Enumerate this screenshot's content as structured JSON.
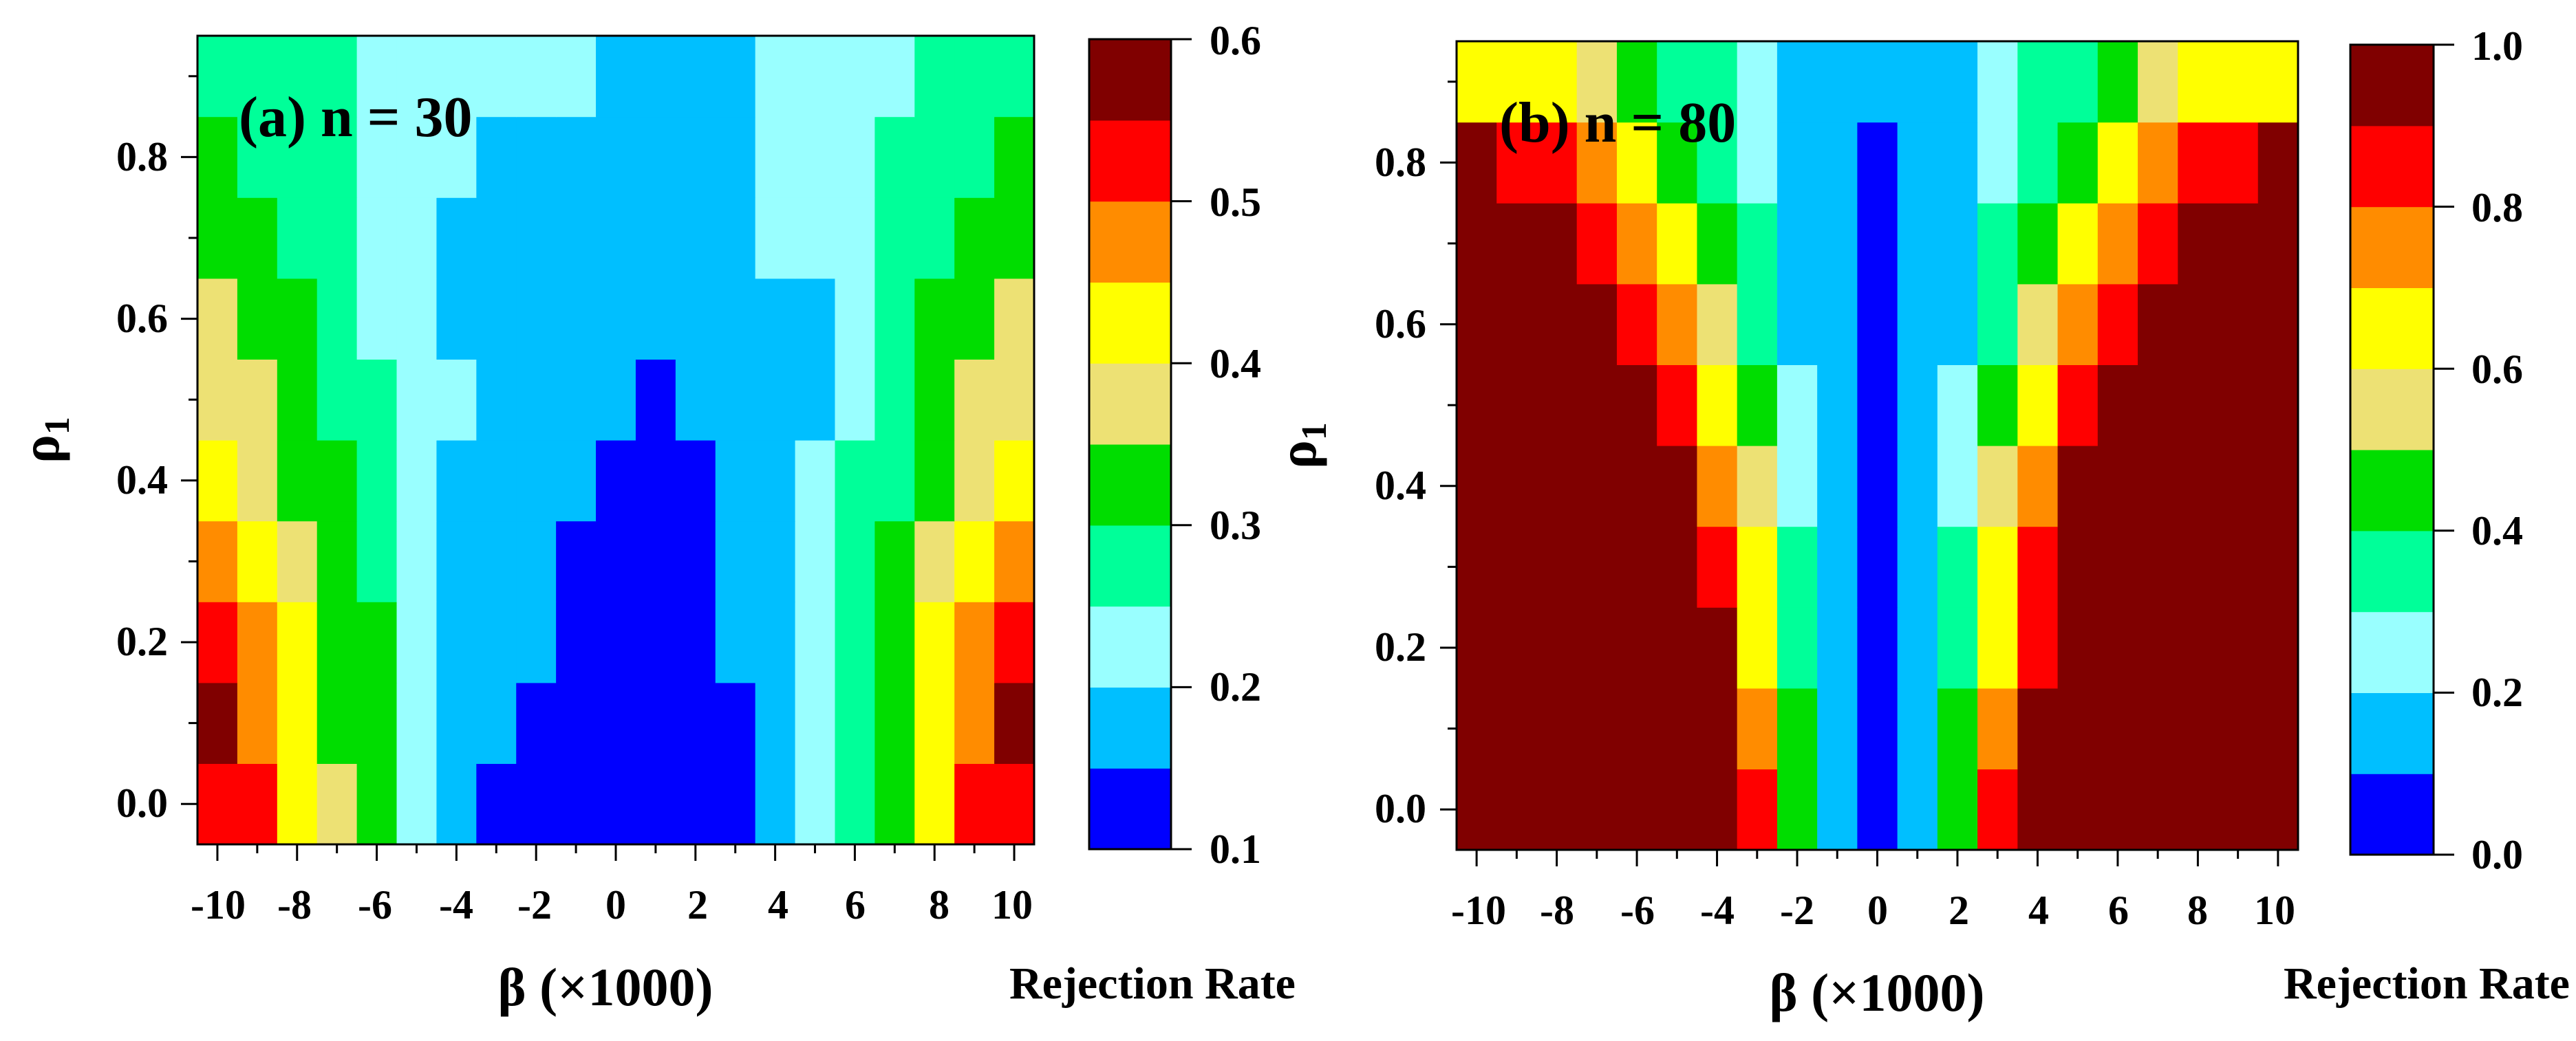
{
  "palette": [
    "#0000FF",
    "#00BFFF",
    "#99FFFF",
    "#00FF99",
    "#00DD00",
    "#EDE174",
    "#FFFF00",
    "#FF8C00",
    "#FF0000",
    "#800000"
  ],
  "chart_data": [
    {
      "type": "heatmap",
      "title": "(a) n = 30",
      "xlabel": "β (×1000)",
      "ylabel": "ρ",
      "ylabel_subscript": "1",
      "colorbar_label": "Rejection Rate",
      "x": [
        -10,
        -9,
        -8,
        -7,
        -6,
        -5,
        -4,
        -3,
        -2,
        -1,
        0,
        1,
        2,
        3,
        4,
        5,
        6,
        7,
        8,
        9,
        10
      ],
      "y": [
        0.0,
        0.1,
        0.2,
        0.3,
        0.4,
        0.5,
        0.6,
        0.7,
        0.8,
        0.9
      ],
      "x_ticks": [
        -10,
        -8,
        -6,
        -4,
        -2,
        0,
        2,
        4,
        6,
        8,
        10
      ],
      "x_tick_labels": [
        "-10",
        "-8",
        "-6",
        "-4",
        "-2",
        "0",
        "2",
        "4",
        "6",
        "8",
        "10"
      ],
      "y_ticks": [
        0.0,
        0.2,
        0.4,
        0.6,
        0.8
      ],
      "y_tick_labels": [
        "0.0",
        "0.2",
        "0.4",
        "0.6",
        "0.8"
      ],
      "color_levels": [
        0.1,
        0.15,
        0.2,
        0.25,
        0.3,
        0.35,
        0.4,
        0.45,
        0.5,
        0.55,
        0.6
      ],
      "colorbar_ticks": [
        0.1,
        0.2,
        0.3,
        0.4,
        0.5,
        0.6
      ],
      "colorbar_tick_labels": [
        "0.1",
        "0.2",
        "0.3",
        "0.4",
        "0.5",
        "0.6"
      ],
      "values": [
        [
          0.525,
          0.525,
          0.425,
          0.375,
          0.325,
          0.225,
          0.175,
          0.125,
          0.125,
          0.125,
          0.125,
          0.125,
          0.125,
          0.125,
          0.175,
          0.225,
          0.275,
          0.325,
          0.425,
          0.525,
          0.525
        ],
        [
          0.575,
          0.475,
          0.425,
          0.325,
          0.325,
          0.225,
          0.175,
          0.175,
          0.125,
          0.125,
          0.125,
          0.125,
          0.125,
          0.125,
          0.175,
          0.225,
          0.275,
          0.325,
          0.425,
          0.475,
          0.575
        ],
        [
          0.525,
          0.475,
          0.425,
          0.325,
          0.325,
          0.225,
          0.175,
          0.175,
          0.175,
          0.125,
          0.125,
          0.125,
          0.125,
          0.175,
          0.175,
          0.225,
          0.275,
          0.325,
          0.425,
          0.475,
          0.525
        ],
        [
          0.475,
          0.425,
          0.375,
          0.325,
          0.275,
          0.225,
          0.175,
          0.175,
          0.175,
          0.125,
          0.125,
          0.125,
          0.125,
          0.175,
          0.175,
          0.225,
          0.275,
          0.325,
          0.375,
          0.425,
          0.475
        ],
        [
          0.425,
          0.375,
          0.325,
          0.325,
          0.275,
          0.225,
          0.175,
          0.175,
          0.175,
          0.175,
          0.125,
          0.125,
          0.125,
          0.175,
          0.175,
          0.225,
          0.275,
          0.275,
          0.325,
          0.375,
          0.425
        ],
        [
          0.375,
          0.375,
          0.325,
          0.275,
          0.275,
          0.225,
          0.225,
          0.175,
          0.175,
          0.175,
          0.175,
          0.125,
          0.175,
          0.175,
          0.175,
          0.175,
          0.225,
          0.275,
          0.325,
          0.375,
          0.375
        ],
        [
          0.375,
          0.325,
          0.325,
          0.275,
          0.225,
          0.225,
          0.175,
          0.175,
          0.175,
          0.175,
          0.175,
          0.175,
          0.175,
          0.175,
          0.175,
          0.175,
          0.225,
          0.275,
          0.325,
          0.325,
          0.375
        ],
        [
          0.325,
          0.325,
          0.275,
          0.275,
          0.225,
          0.225,
          0.175,
          0.175,
          0.175,
          0.175,
          0.175,
          0.175,
          0.175,
          0.175,
          0.225,
          0.225,
          0.225,
          0.275,
          0.275,
          0.325,
          0.325
        ],
        [
          0.325,
          0.275,
          0.275,
          0.275,
          0.225,
          0.225,
          0.225,
          0.175,
          0.175,
          0.175,
          0.175,
          0.175,
          0.175,
          0.175,
          0.225,
          0.225,
          0.225,
          0.275,
          0.275,
          0.275,
          0.325
        ],
        [
          0.275,
          0.275,
          0.275,
          0.275,
          0.225,
          0.225,
          0.225,
          0.225,
          0.225,
          0.225,
          0.175,
          0.175,
          0.175,
          0.175,
          0.225,
          0.225,
          0.225,
          0.225,
          0.275,
          0.275,
          0.275
        ]
      ]
    },
    {
      "type": "heatmap",
      "title": "(b) n = 80",
      "xlabel": "β (×1000)",
      "ylabel": "ρ",
      "ylabel_subscript": "1",
      "colorbar_label": "Rejection Rate",
      "x": [
        -10,
        -9,
        -8,
        -7,
        -6,
        -5,
        -4,
        -3,
        -2,
        -1,
        0,
        1,
        2,
        3,
        4,
        5,
        6,
        7,
        8,
        9,
        10
      ],
      "y": [
        0.0,
        0.1,
        0.2,
        0.3,
        0.4,
        0.5,
        0.6,
        0.7,
        0.8,
        0.9
      ],
      "x_ticks": [
        -10,
        -8,
        -6,
        -4,
        -2,
        0,
        2,
        4,
        6,
        8,
        10
      ],
      "x_tick_labels": [
        "-10",
        "-8",
        "-6",
        "-4",
        "-2",
        "0",
        "2",
        "4",
        "6",
        "8",
        "10"
      ],
      "y_ticks": [
        0.0,
        0.2,
        0.4,
        0.6,
        0.8
      ],
      "y_tick_labels": [
        "0.0",
        "0.2",
        "0.4",
        "0.6",
        "0.8"
      ],
      "color_levels": [
        0.0,
        0.1,
        0.2,
        0.3,
        0.4,
        0.5,
        0.6,
        0.7,
        0.8,
        0.9,
        1.0
      ],
      "colorbar_ticks": [
        0.0,
        0.2,
        0.4,
        0.6,
        0.8,
        1.0
      ],
      "colorbar_tick_labels": [
        "0.0",
        "0.2",
        "0.4",
        "0.6",
        "0.8",
        "1.0"
      ],
      "values": [
        [
          0.95,
          0.95,
          0.95,
          0.95,
          0.95,
          0.95,
          0.95,
          0.85,
          0.45,
          0.15,
          0.05,
          0.15,
          0.45,
          0.85,
          0.95,
          0.95,
          0.95,
          0.95,
          0.95,
          0.95,
          0.95
        ],
        [
          0.95,
          0.95,
          0.95,
          0.95,
          0.95,
          0.95,
          0.95,
          0.75,
          0.45,
          0.15,
          0.05,
          0.15,
          0.45,
          0.75,
          0.95,
          0.95,
          0.95,
          0.95,
          0.95,
          0.95,
          0.95
        ],
        [
          0.95,
          0.95,
          0.95,
          0.95,
          0.95,
          0.95,
          0.95,
          0.65,
          0.35,
          0.15,
          0.05,
          0.15,
          0.35,
          0.65,
          0.85,
          0.95,
          0.95,
          0.95,
          0.95,
          0.95,
          0.95
        ],
        [
          0.95,
          0.95,
          0.95,
          0.95,
          0.95,
          0.95,
          0.85,
          0.65,
          0.35,
          0.15,
          0.05,
          0.15,
          0.35,
          0.65,
          0.85,
          0.95,
          0.95,
          0.95,
          0.95,
          0.95,
          0.95
        ],
        [
          0.95,
          0.95,
          0.95,
          0.95,
          0.95,
          0.95,
          0.75,
          0.55,
          0.25,
          0.15,
          0.05,
          0.15,
          0.25,
          0.55,
          0.75,
          0.95,
          0.95,
          0.95,
          0.95,
          0.95,
          0.95
        ],
        [
          0.95,
          0.95,
          0.95,
          0.95,
          0.95,
          0.85,
          0.65,
          0.45,
          0.25,
          0.15,
          0.05,
          0.15,
          0.25,
          0.45,
          0.65,
          0.85,
          0.95,
          0.95,
          0.95,
          0.95,
          0.95
        ],
        [
          0.95,
          0.95,
          0.95,
          0.95,
          0.85,
          0.75,
          0.55,
          0.35,
          0.15,
          0.15,
          0.05,
          0.15,
          0.15,
          0.35,
          0.55,
          0.75,
          0.85,
          0.95,
          0.95,
          0.95,
          0.95
        ],
        [
          0.95,
          0.95,
          0.95,
          0.85,
          0.75,
          0.65,
          0.45,
          0.35,
          0.15,
          0.15,
          0.05,
          0.15,
          0.15,
          0.35,
          0.45,
          0.65,
          0.75,
          0.85,
          0.95,
          0.95,
          0.95
        ],
        [
          0.95,
          0.85,
          0.85,
          0.75,
          0.65,
          0.45,
          0.35,
          0.25,
          0.15,
          0.15,
          0.05,
          0.15,
          0.15,
          0.25,
          0.35,
          0.45,
          0.65,
          0.75,
          0.85,
          0.85,
          0.95
        ],
        [
          0.65,
          0.65,
          0.65,
          0.55,
          0.45,
          0.35,
          0.35,
          0.25,
          0.15,
          0.15,
          0.15,
          0.15,
          0.15,
          0.25,
          0.35,
          0.35,
          0.45,
          0.55,
          0.65,
          0.65,
          0.65
        ]
      ]
    }
  ]
}
